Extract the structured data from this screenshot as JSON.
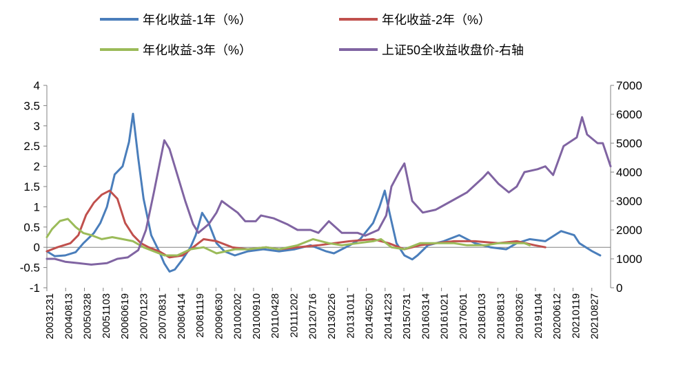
{
  "chart_data": {
    "type": "line",
    "title": "",
    "xlabel": "",
    "ylabel_left": "",
    "ylabel_right": "",
    "legend_position": "top",
    "grid": false,
    "y_left_lim": [
      -1,
      4
    ],
    "y_left_ticks": [
      "-1",
      "-0.5",
      "0",
      "0.5",
      "1",
      "1.5",
      "2",
      "2.5",
      "3",
      "3.5",
      "4"
    ],
    "y_right_lim": [
      0,
      7000
    ],
    "y_right_ticks": [
      "0",
      "1000",
      "2000",
      "3000",
      "4000",
      "5000",
      "6000",
      "7000"
    ],
    "x_tick_labels": [
      "20031231",
      "20040813",
      "20050328",
      "20051103",
      "20060619",
      "20070123",
      "20070831",
      "20080414",
      "20081119",
      "20090630",
      "20100202",
      "20100910",
      "20110428",
      "20111202",
      "20120716",
      "20130226",
      "20131011",
      "20140520",
      "20141223",
      "20150731",
      "20160314",
      "20161021",
      "20170601",
      "20180103",
      "20180813",
      "20190326",
      "20191104",
      "20200612",
      "20210119",
      "20210827"
    ],
    "series": [
      {
        "name": "年化收益-1年（%）",
        "axis": "left",
        "color": "#4a7ebb",
        "points": [
          [
            "2003-12-31",
            -0.1
          ],
          [
            "2004-04-01",
            -0.22
          ],
          [
            "2004-08-01",
            -0.2
          ],
          [
            "2004-12-01",
            -0.12
          ],
          [
            "2005-03-01",
            0.1
          ],
          [
            "2005-07-01",
            0.35
          ],
          [
            "2005-09-15",
            0.6
          ],
          [
            "2005-12-01",
            1.0
          ],
          [
            "2006-03-01",
            1.8
          ],
          [
            "2006-06-01",
            2.0
          ],
          [
            "2006-08-15",
            2.6
          ],
          [
            "2006-10-01",
            3.3
          ],
          [
            "2006-12-01",
            2.2
          ],
          [
            "2007-02-01",
            1.2
          ],
          [
            "2007-05-01",
            0.3
          ],
          [
            "2007-08-01",
            -0.1
          ],
          [
            "2007-10-01",
            -0.4
          ],
          [
            "2007-12-01",
            -0.6
          ],
          [
            "2008-02-01",
            -0.55
          ],
          [
            "2008-05-01",
            -0.3
          ],
          [
            "2008-08-01",
            0.0
          ],
          [
            "2008-10-01",
            0.3
          ],
          [
            "2008-12-15",
            0.85
          ],
          [
            "2009-03-01",
            0.6
          ],
          [
            "2009-06-01",
            0.1
          ],
          [
            "2009-09-01",
            -0.1
          ],
          [
            "2010-01-01",
            -0.2
          ],
          [
            "2010-06-01",
            -0.1
          ],
          [
            "2010-12-01",
            -0.05
          ],
          [
            "2011-06-01",
            -0.1
          ],
          [
            "2011-12-01",
            -0.05
          ],
          [
            "2012-06-01",
            0.05
          ],
          [
            "2012-12-01",
            -0.1
          ],
          [
            "2013-03-01",
            -0.15
          ],
          [
            "2013-09-01",
            0.05
          ],
          [
            "2014-01-01",
            0.2
          ],
          [
            "2014-06-01",
            0.6
          ],
          [
            "2014-08-15",
            1.0
          ],
          [
            "2014-10-15",
            1.4
          ],
          [
            "2014-12-15",
            0.8
          ],
          [
            "2015-03-01",
            0.1
          ],
          [
            "2015-06-01",
            -0.2
          ],
          [
            "2015-09-01",
            -0.3
          ],
          [
            "2015-11-01",
            -0.2
          ],
          [
            "2016-03-01",
            0.05
          ],
          [
            "2016-09-01",
            0.15
          ],
          [
            "2017-03-01",
            0.3
          ],
          [
            "2017-09-01",
            0.1
          ],
          [
            "2018-03-01",
            0.0
          ],
          [
            "2018-09-01",
            -0.05
          ],
          [
            "2019-01-01",
            0.1
          ],
          [
            "2019-06-01",
            0.2
          ],
          [
            "2019-12-01",
            0.15
          ],
          [
            "2020-06-01",
            0.4
          ],
          [
            "2020-11-01",
            0.3
          ],
          [
            "2021-01-01",
            0.1
          ],
          [
            "2021-06-01",
            -0.1
          ],
          [
            "2021-09-01",
            -0.2
          ]
        ]
      },
      {
        "name": "年化收益-2年（%）",
        "axis": "left",
        "color": "#c0504d",
        "points": [
          [
            "2003-12-31",
            -0.1
          ],
          [
            "2004-05-01",
            0.0
          ],
          [
            "2004-10-01",
            0.1
          ],
          [
            "2005-01-01",
            0.3
          ],
          [
            "2005-04-01",
            0.8
          ],
          [
            "2005-07-01",
            1.1
          ],
          [
            "2005-10-01",
            1.3
          ],
          [
            "2006-01-01",
            1.4
          ],
          [
            "2006-04-01",
            1.2
          ],
          [
            "2006-07-01",
            0.6
          ],
          [
            "2006-10-01",
            0.3
          ],
          [
            "2007-01-01",
            0.1
          ],
          [
            "2007-04-01",
            0.0
          ],
          [
            "2007-08-01",
            -0.1
          ],
          [
            "2007-12-01",
            -0.25
          ],
          [
            "2008-05-01",
            -0.2
          ],
          [
            "2008-10-01",
            0.05
          ],
          [
            "2009-01-01",
            0.2
          ],
          [
            "2009-06-01",
            0.15
          ],
          [
            "2009-12-01",
            0.0
          ],
          [
            "2010-06-01",
            -0.05
          ],
          [
            "2011-01-01",
            0.0
          ],
          [
            "2011-06-01",
            -0.05
          ],
          [
            "2012-01-01",
            0.0
          ],
          [
            "2012-09-01",
            0.05
          ],
          [
            "2013-03-01",
            0.1
          ],
          [
            "2013-09-01",
            0.15
          ],
          [
            "2014-06-01",
            0.2
          ],
          [
            "2014-12-01",
            0.1
          ],
          [
            "2015-06-01",
            -0.05
          ],
          [
            "2015-12-01",
            0.05
          ],
          [
            "2016-06-01",
            0.1
          ],
          [
            "2017-01-01",
            0.15
          ],
          [
            "2017-09-01",
            0.15
          ],
          [
            "2018-06-01",
            0.1
          ],
          [
            "2019-01-01",
            0.15
          ],
          [
            "2019-08-01",
            0.05
          ],
          [
            "2019-12-01",
            0.0
          ]
        ]
      },
      {
        "name": "年化收益-3年（%）",
        "axis": "left",
        "color": "#9bbb59",
        "points": [
          [
            "2003-12-31",
            0.25
          ],
          [
            "2004-03-01",
            0.45
          ],
          [
            "2004-06-01",
            0.65
          ],
          [
            "2004-09-01",
            0.7
          ],
          [
            "2004-12-01",
            0.5
          ],
          [
            "2005-03-01",
            0.35
          ],
          [
            "2005-06-01",
            0.3
          ],
          [
            "2005-10-01",
            0.2
          ],
          [
            "2006-02-01",
            0.25
          ],
          [
            "2006-06-01",
            0.2
          ],
          [
            "2006-10-01",
            0.15
          ],
          [
            "2007-02-01",
            0.0
          ],
          [
            "2007-06-01",
            -0.1
          ],
          [
            "2007-10-01",
            -0.2
          ],
          [
            "2008-03-01",
            -0.2
          ],
          [
            "2008-08-01",
            -0.05
          ],
          [
            "2009-01-01",
            0.0
          ],
          [
            "2009-06-01",
            -0.15
          ],
          [
            "2010-01-01",
            -0.05
          ],
          [
            "2010-06-01",
            -0.05
          ],
          [
            "2011-01-01",
            0.0
          ],
          [
            "2011-06-01",
            -0.05
          ],
          [
            "2012-01-01",
            0.05
          ],
          [
            "2012-07-01",
            0.2
          ],
          [
            "2013-01-01",
            0.1
          ],
          [
            "2013-06-01",
            0.05
          ],
          [
            "2013-12-01",
            0.1
          ],
          [
            "2014-06-01",
            0.15
          ],
          [
            "2014-09-01",
            0.2
          ],
          [
            "2015-01-01",
            0.0
          ],
          [
            "2015-06-01",
            -0.05
          ],
          [
            "2015-12-01",
            0.1
          ],
          [
            "2016-06-01",
            0.1
          ],
          [
            "2017-01-01",
            0.1
          ],
          [
            "2017-06-01",
            0.05
          ],
          [
            "2018-01-01",
            0.05
          ],
          [
            "2018-06-01",
            0.1
          ],
          [
            "2018-12-01",
            0.1
          ],
          [
            "2019-04-01",
            0.1
          ],
          [
            "2019-06-01",
            0.05
          ]
        ]
      },
      {
        "name": "上证50全收益收盘价-右轴",
        "axis": "right",
        "color": "#8064a2",
        "points": [
          [
            "2003-12-31",
            1000
          ],
          [
            "2004-04-01",
            1000
          ],
          [
            "2004-08-01",
            900
          ],
          [
            "2005-01-01",
            850
          ],
          [
            "2005-06-01",
            800
          ],
          [
            "2005-12-01",
            850
          ],
          [
            "2006-04-01",
            1000
          ],
          [
            "2006-08-01",
            1050
          ],
          [
            "2006-12-01",
            1300
          ],
          [
            "2007-03-01",
            2000
          ],
          [
            "2007-06-01",
            3300
          ],
          [
            "2007-10-01",
            5100
          ],
          [
            "2007-12-01",
            4800
          ],
          [
            "2008-03-01",
            3900
          ],
          [
            "2008-06-01",
            3000
          ],
          [
            "2008-09-01",
            2200
          ],
          [
            "2008-11-01",
            1900
          ],
          [
            "2009-03-01",
            2200
          ],
          [
            "2009-06-01",
            2600
          ],
          [
            "2009-08-01",
            3000
          ],
          [
            "2009-11-01",
            2800
          ],
          [
            "2010-02-01",
            2600
          ],
          [
            "2010-05-01",
            2300
          ],
          [
            "2010-09-01",
            2300
          ],
          [
            "2010-11-01",
            2500
          ],
          [
            "2011-04-01",
            2400
          ],
          [
            "2011-09-01",
            2200
          ],
          [
            "2012-01-01",
            2000
          ],
          [
            "2012-06-01",
            2000
          ],
          [
            "2012-09-01",
            1900
          ],
          [
            "2013-01-01",
            2300
          ],
          [
            "2013-06-01",
            1900
          ],
          [
            "2013-12-01",
            1900
          ],
          [
            "2014-03-01",
            1800
          ],
          [
            "2014-08-01",
            2000
          ],
          [
            "2014-11-01",
            2500
          ],
          [
            "2015-01-01",
            3500
          ],
          [
            "2015-04-01",
            4000
          ],
          [
            "2015-06-01",
            4300
          ],
          [
            "2015-09-01",
            3000
          ],
          [
            "2016-01-01",
            2600
          ],
          [
            "2016-06-01",
            2700
          ],
          [
            "2016-12-01",
            3000
          ],
          [
            "2017-06-01",
            3300
          ],
          [
            "2017-12-01",
            3800
          ],
          [
            "2018-02-01",
            4000
          ],
          [
            "2018-06-01",
            3600
          ],
          [
            "2018-10-01",
            3300
          ],
          [
            "2019-01-01",
            3500
          ],
          [
            "2019-04-01",
            4000
          ],
          [
            "2019-09-01",
            4100
          ],
          [
            "2019-12-01",
            4200
          ],
          [
            "2020-03-01",
            3900
          ],
          [
            "2020-07-01",
            4900
          ],
          [
            "2020-12-01",
            5200
          ],
          [
            "2021-02-01",
            5900
          ],
          [
            "2021-04-01",
            5300
          ],
          [
            "2021-08-01",
            5000
          ],
          [
            "2021-10-01",
            5000
          ],
          [
            "2021-12-31",
            4200
          ]
        ]
      }
    ]
  }
}
